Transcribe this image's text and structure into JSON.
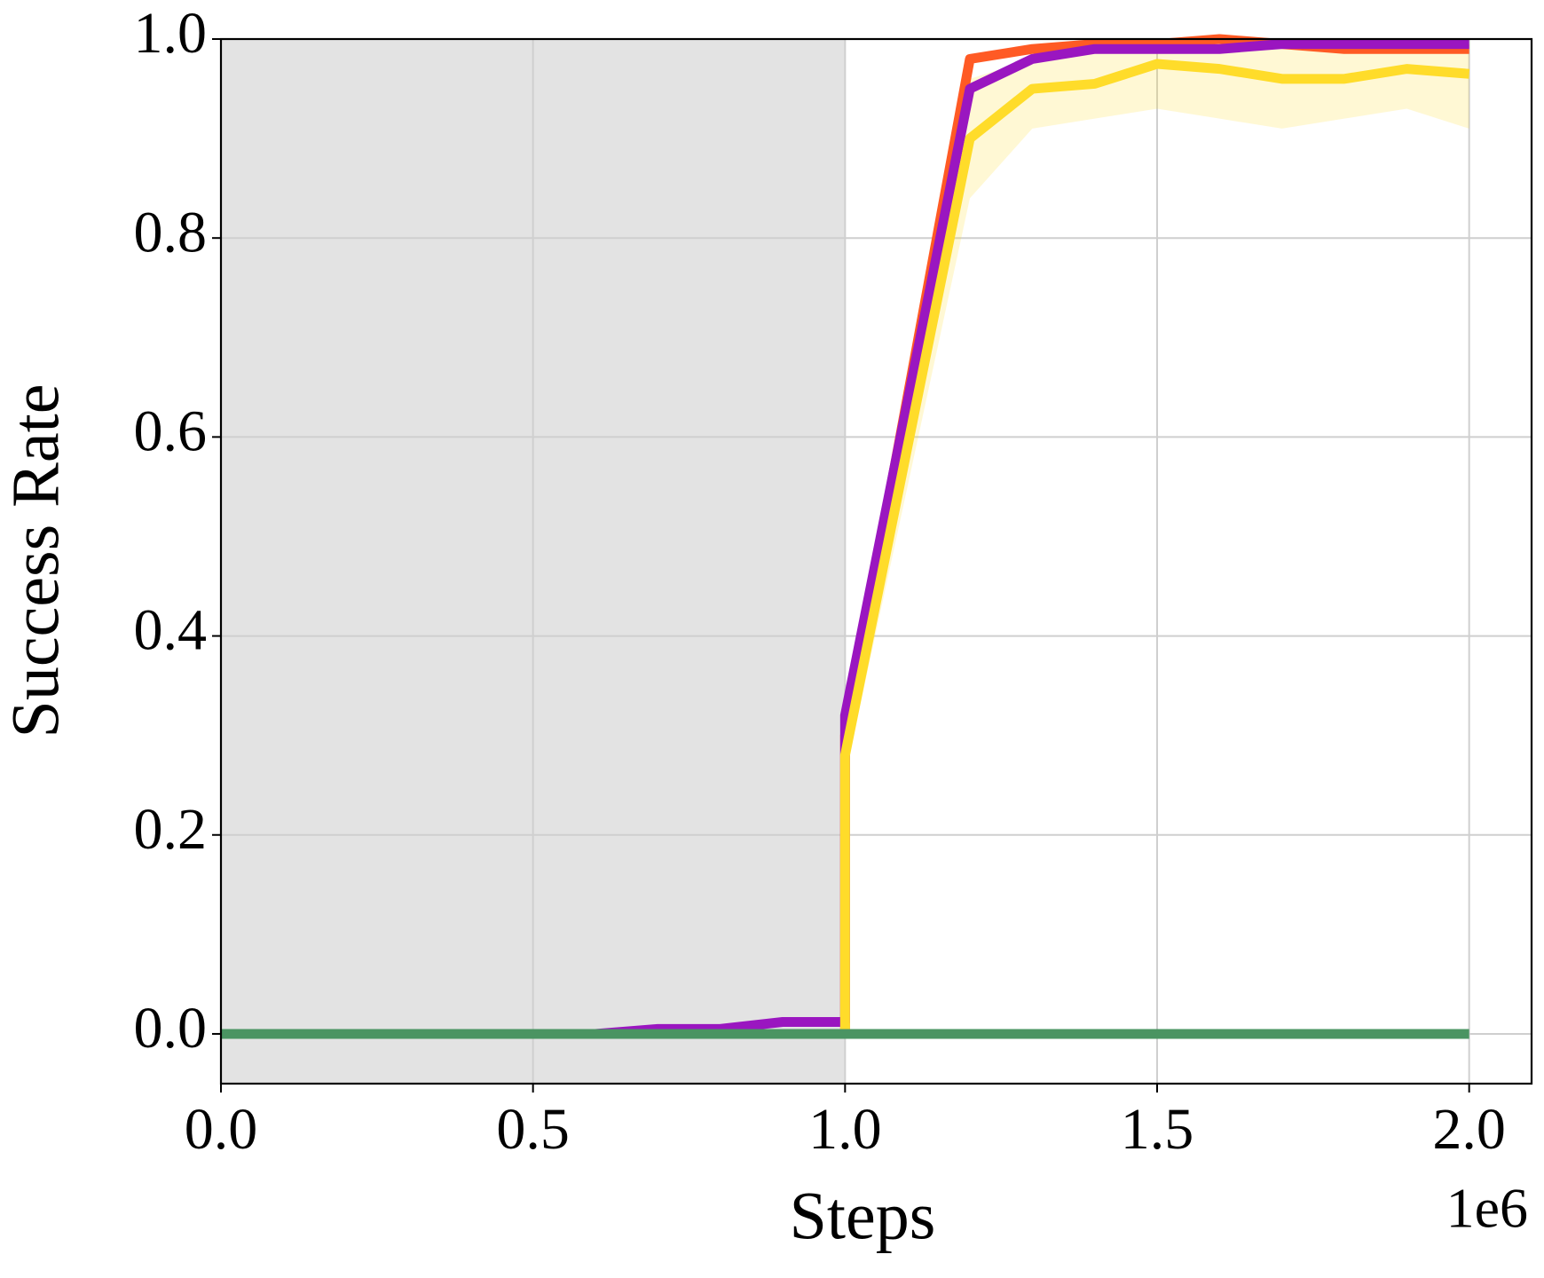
{
  "chart_data": {
    "type": "line",
    "xlabel": "Steps",
    "ylabel": "Success Rate",
    "x_offset_label": "1e6",
    "x": [
      0,
      0.1,
      0.2,
      0.3,
      0.4,
      0.5,
      0.6,
      0.7,
      0.8,
      0.9,
      1.0,
      1.0,
      1.2,
      1.3,
      1.4,
      1.5,
      1.6,
      1.7,
      1.8,
      1.9,
      2.0
    ],
    "shaded_region": [
      0,
      1.0
    ],
    "shade_color": "#e3e3e3",
    "series": [
      {
        "color": "#ff5a24",
        "values": [
          0,
          0,
          0,
          0,
          0,
          0,
          0,
          0,
          0,
          0,
          0,
          0.3,
          0.98,
          0.99,
          0.995,
          0.995,
          1.0,
          0.995,
          0.99,
          0.99,
          0.99
        ]
      },
      {
        "color": "#9a16c0",
        "values": [
          0,
          0,
          0,
          0,
          0,
          0,
          0,
          0.005,
          0.005,
          0.012,
          0.012,
          0.32,
          0.95,
          0.98,
          0.99,
          0.99,
          0.99,
          0.995,
          0.995,
          0.995,
          0.995
        ]
      },
      {
        "color": "#ffdc2a",
        "values": [
          0,
          0,
          0,
          0,
          0,
          0,
          0,
          0,
          0,
          0,
          0,
          0.28,
          0.9,
          0.95,
          0.955,
          0.975,
          0.97,
          0.96,
          0.96,
          0.97,
          0.965
        ],
        "lower": [
          0,
          0,
          0,
          0,
          0,
          0,
          0,
          0,
          0,
          0,
          0,
          0.26,
          0.84,
          0.91,
          0.92,
          0.93,
          0.92,
          0.91,
          0.92,
          0.93,
          0.91
        ],
        "upper": [
          0,
          0,
          0,
          0,
          0,
          0,
          0,
          0,
          0,
          0,
          0,
          0.3,
          0.96,
          0.98,
          0.99,
          1.0,
          1.0,
          1.0,
          1.0,
          1.0,
          1.0
        ]
      },
      {
        "color": "#4a9462",
        "values": [
          0,
          0,
          0,
          0,
          0,
          0,
          0,
          0,
          0,
          0,
          0,
          0,
          0,
          0,
          0,
          0,
          0,
          0,
          0,
          0,
          0
        ]
      }
    ],
    "xlim": [
      0,
      2.1
    ],
    "ylim": [
      -0.05,
      1.0
    ],
    "xticks": [
      {
        "value": 0,
        "label": "0.0"
      },
      {
        "value": 0.5,
        "label": "0.5"
      },
      {
        "value": 1,
        "label": "1.0"
      },
      {
        "value": 1.5,
        "label": "1.5"
      },
      {
        "value": 2,
        "label": "2.0"
      }
    ],
    "yticks": [
      {
        "value": 0,
        "label": "0.0"
      },
      {
        "value": 0.2,
        "label": "0.2"
      },
      {
        "value": 0.4,
        "label": "0.4"
      },
      {
        "value": 0.6,
        "label": "0.6"
      },
      {
        "value": 0.8,
        "label": "0.8"
      },
      {
        "value": 1,
        "label": "1.0"
      }
    ],
    "grid": true
  }
}
